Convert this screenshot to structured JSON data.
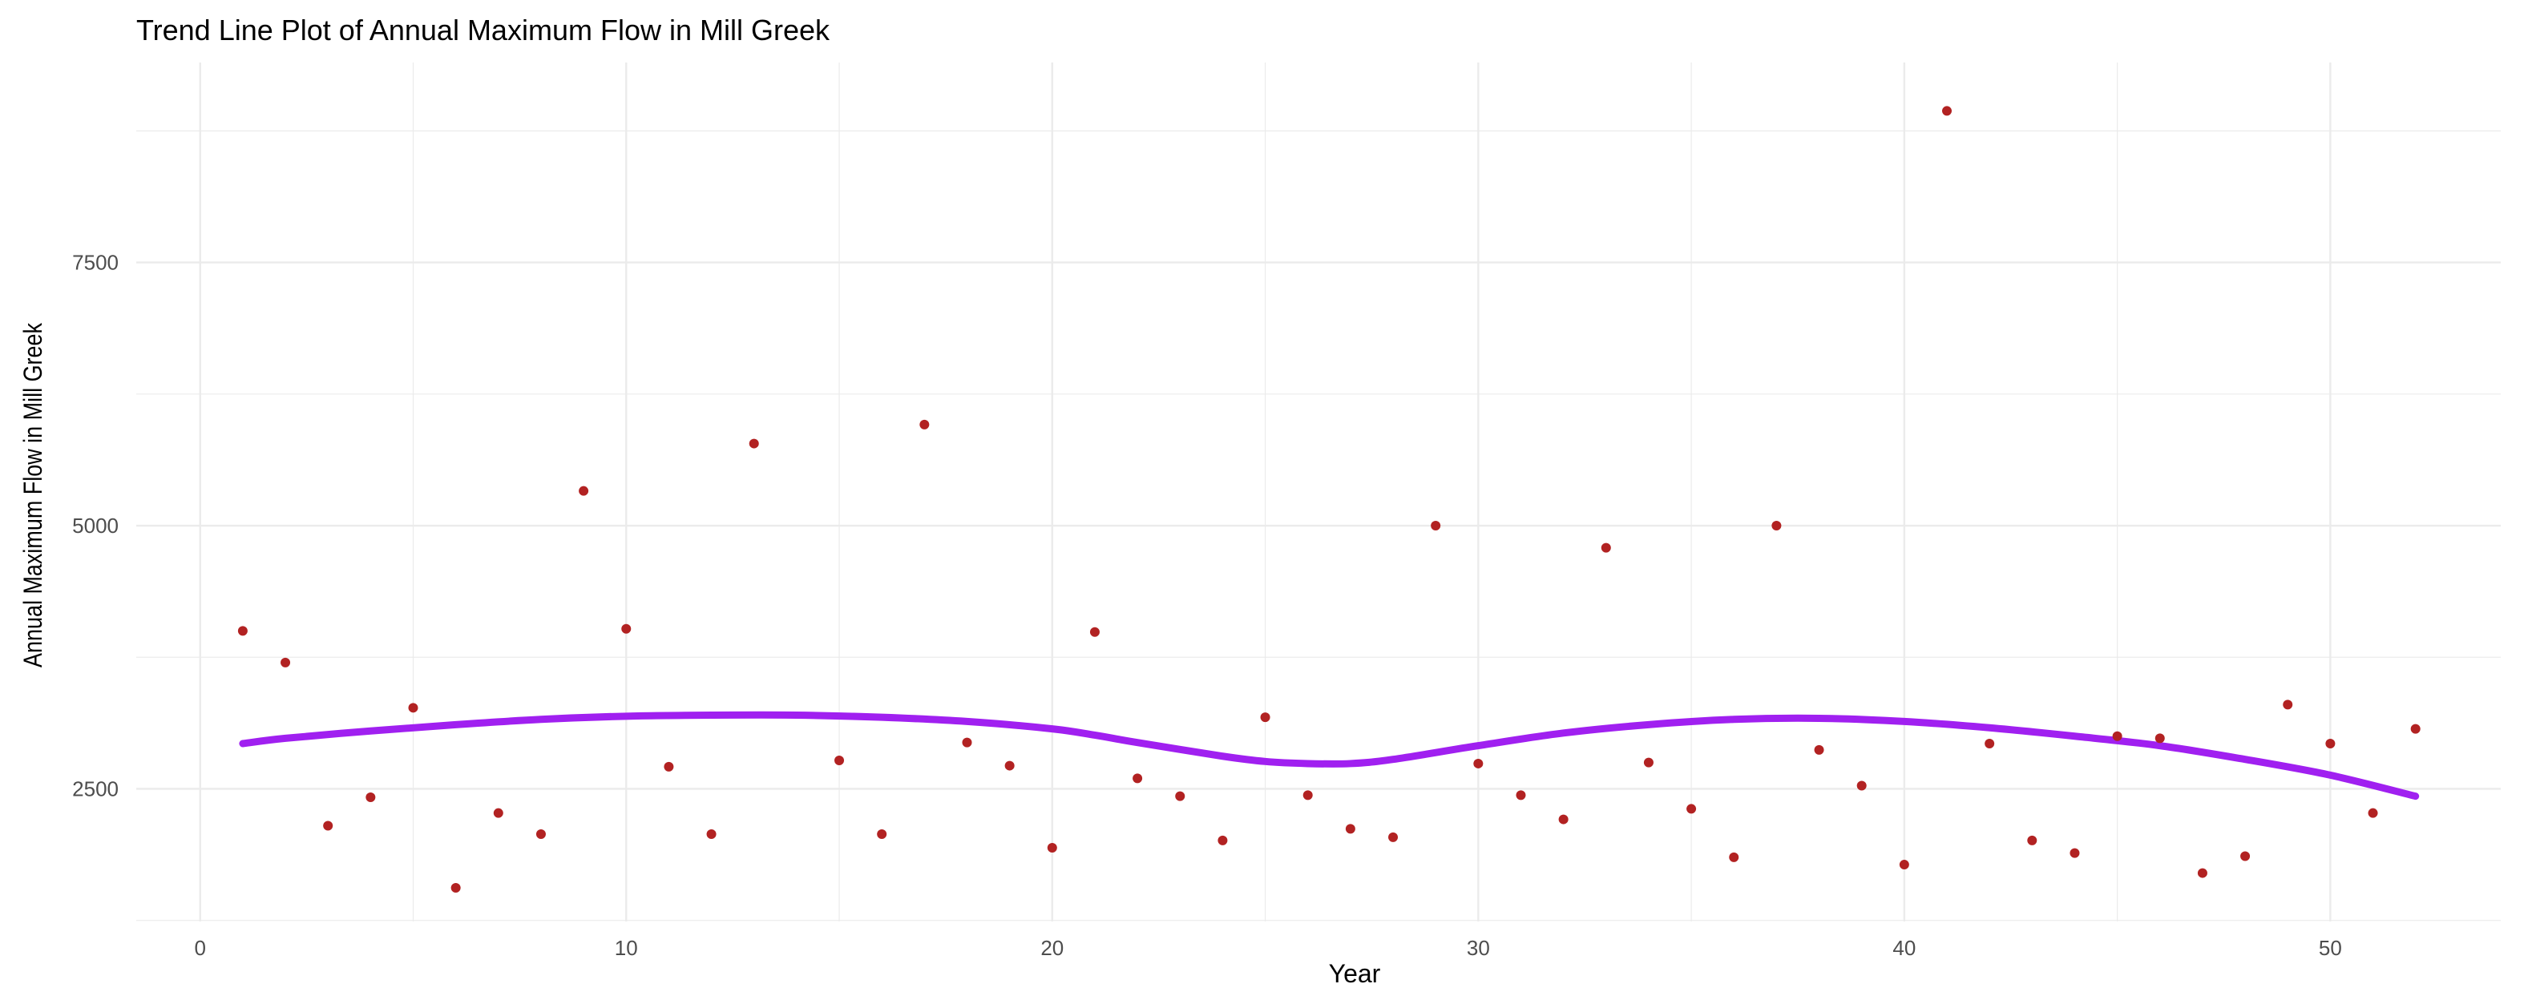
{
  "chart_data": {
    "type": "scatter",
    "title": "Trend Line Plot of Annual Maximum Flow in Mill Greek",
    "xlabel": "Year",
    "ylabel": "Annual Maximum Flow in Mill Greek",
    "xlim": [
      -1.5,
      54
    ],
    "ylim": [
      1240,
      9400
    ],
    "x_ticks": [
      0,
      10,
      20,
      30,
      40,
      50
    ],
    "y_ticks": [
      2500,
      5000,
      7500
    ],
    "x_tick_labels": [
      "0",
      "10",
      "20",
      "30",
      "40",
      "50"
    ],
    "y_tick_labels": [
      "2500",
      "5000",
      "7500"
    ],
    "grid": true,
    "colors": {
      "points": "#b22222",
      "trend": "#a020f0",
      "grid": "#ebebeb"
    },
    "series": [
      {
        "kind": "points",
        "x": [
          1,
          2,
          3,
          4,
          5,
          6,
          7,
          8,
          9,
          10,
          11,
          12,
          13,
          14,
          15,
          16,
          17,
          18,
          19,
          20,
          21,
          22,
          23,
          24,
          25,
          26,
          27,
          28,
          29,
          30,
          31,
          32,
          33,
          34,
          35,
          36,
          37,
          38,
          39,
          40,
          41,
          42,
          43,
          44,
          45,
          46,
          47,
          48,
          49,
          50,
          51,
          52
        ],
        "y": [
          4000,
          3700,
          2150,
          2420,
          3270,
          1560,
          2270,
          2070,
          5330,
          4020,
          2710,
          2070,
          5780,
          null,
          2770,
          2070,
          5960,
          2940,
          2720,
          1940,
          3990,
          2600,
          2430,
          2010,
          3180,
          2440,
          2120,
          2040,
          5000,
          2740,
          2440,
          2210,
          4790,
          2750,
          2310,
          1850,
          5000,
          2870,
          2530,
          1780,
          8940,
          2930,
          2010,
          1890,
          3000,
          2980,
          1700,
          1860,
          3300,
          2930,
          2270,
          3070
        ]
      },
      {
        "kind": "trend",
        "x": [
          1,
          2,
          4,
          6,
          8,
          10,
          12,
          14,
          16,
          18,
          20,
          21,
          22,
          24,
          25,
          26,
          27,
          28,
          30,
          32,
          34,
          36,
          38,
          40,
          42,
          44,
          46,
          48,
          50,
          52
        ],
        "y": [
          2930,
          2980,
          3050,
          3110,
          3160,
          3190,
          3200,
          3200,
          3180,
          3140,
          3070,
          3010,
          2940,
          2810,
          2760,
          2740,
          2740,
          2780,
          2910,
          3030,
          3110,
          3160,
          3170,
          3140,
          3080,
          3000,
          2910,
          2780,
          2630,
          2430
        ]
      }
    ]
  }
}
